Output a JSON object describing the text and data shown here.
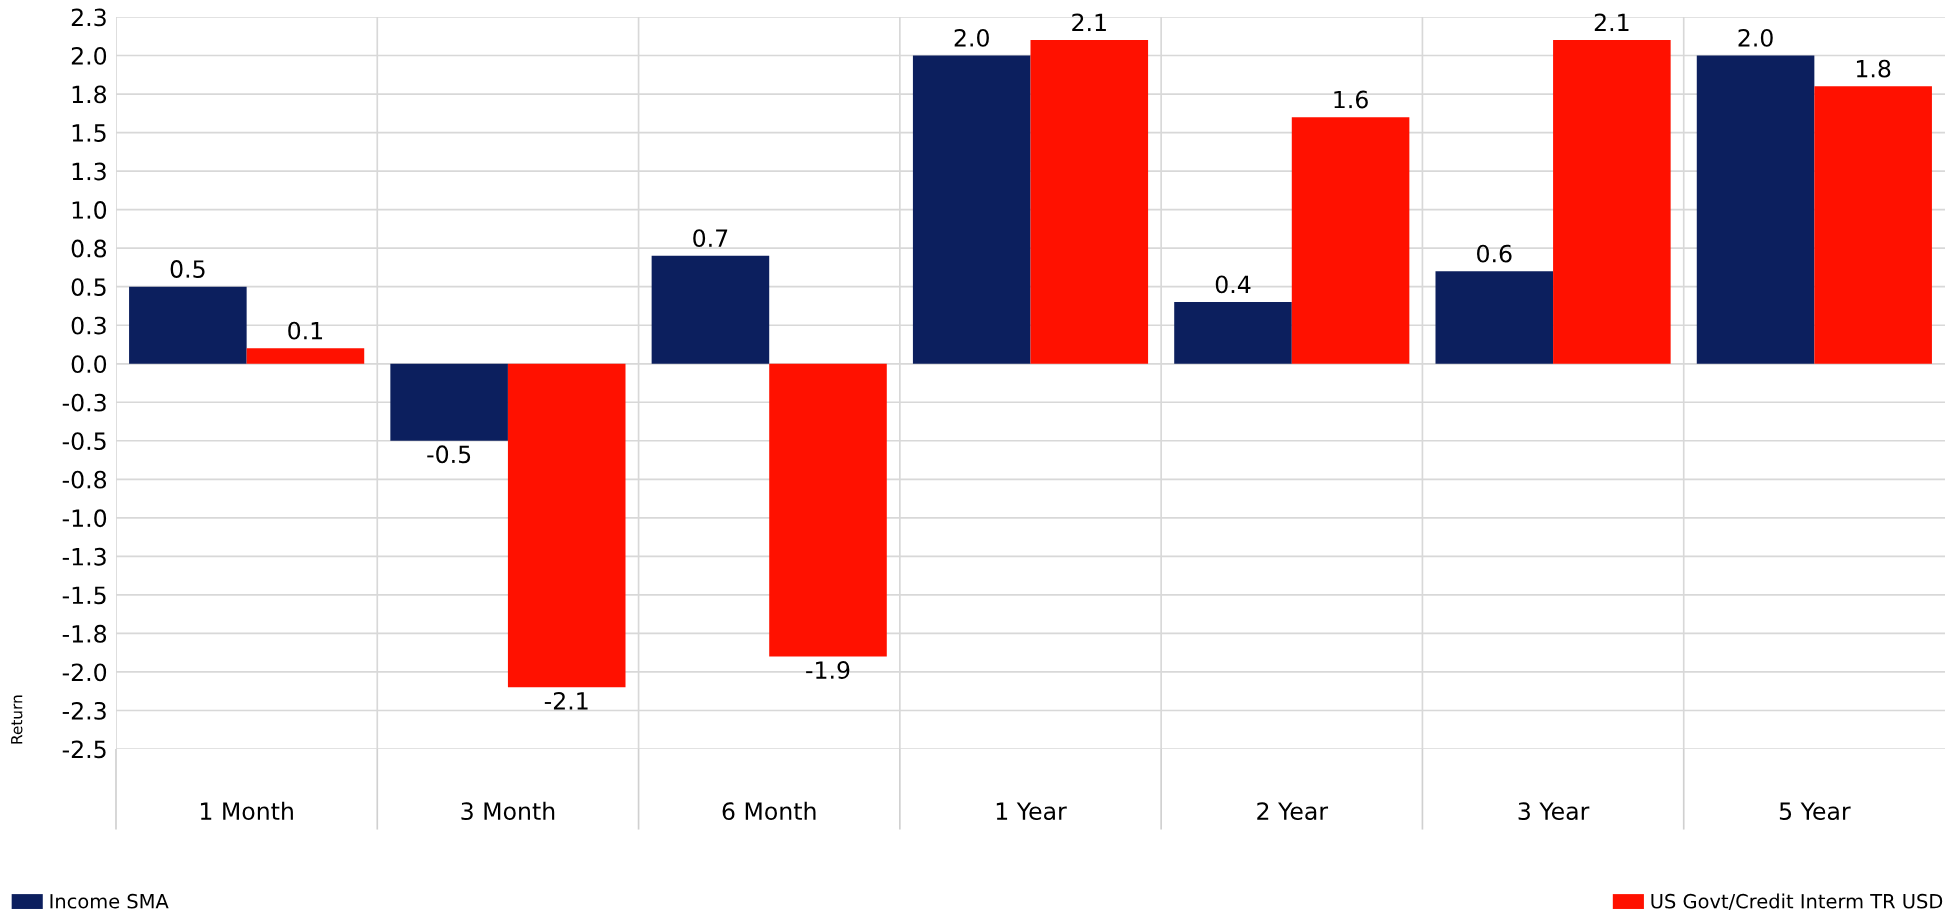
{
  "chart_data": {
    "type": "bar",
    "ylabel": "Return",
    "categories": [
      "1 Month",
      "3 Month",
      "6 Month",
      "1 Year",
      "2 Year",
      "3 Year",
      "5 Year"
    ],
    "series": [
      {
        "name": "Income SMA",
        "color": "#0c1f5e",
        "values": [
          0.5,
          -0.5,
          0.7,
          2.0,
          0.4,
          0.6,
          2.0
        ],
        "value_labels": [
          "0.5",
          "-0.5",
          "0.7",
          "2.0",
          "0.4",
          "0.6",
          "2.0"
        ]
      },
      {
        "name": "US Govt/Credit Interm TR USD",
        "color": "#ff1100",
        "values": [
          0.1,
          -2.1,
          -1.9,
          2.1,
          1.6,
          2.1,
          1.8
        ],
        "value_labels": [
          "0.1",
          "-2.1",
          "-1.9",
          "2.1",
          "1.6",
          "2.1",
          "1.8"
        ]
      }
    ],
    "ylim": [
      -2.5,
      2.25
    ],
    "yticks": [
      {
        "value": 2.25,
        "label": "2.3"
      },
      {
        "value": 2.0,
        "label": "2.0"
      },
      {
        "value": 1.75,
        "label": "1.8"
      },
      1.5,
      {
        "value": 1.25,
        "label": "1.3"
      },
      {
        "value": 1.0,
        "label": "1.0"
      },
      {
        "value": 0.75,
        "label": "0.8"
      },
      0.5,
      {
        "value": 0.25,
        "label": "0.3"
      },
      {
        "value": 0.0,
        "label": "0.0"
      },
      {
        "value": -0.25,
        "label": "-0.3"
      },
      -0.5,
      {
        "value": -0.75,
        "label": "-0.8"
      },
      {
        "value": -1.0,
        "label": "-1.0"
      },
      {
        "value": -1.25,
        "label": "-1.3"
      },
      -1.5,
      {
        "value": -1.75,
        "label": "-1.8"
      },
      {
        "value": -2.0,
        "label": "-2.0"
      },
      {
        "value": -2.25,
        "label": "-2.3"
      },
      -2.5
    ],
    "grid": true,
    "legend": "bottom"
  }
}
